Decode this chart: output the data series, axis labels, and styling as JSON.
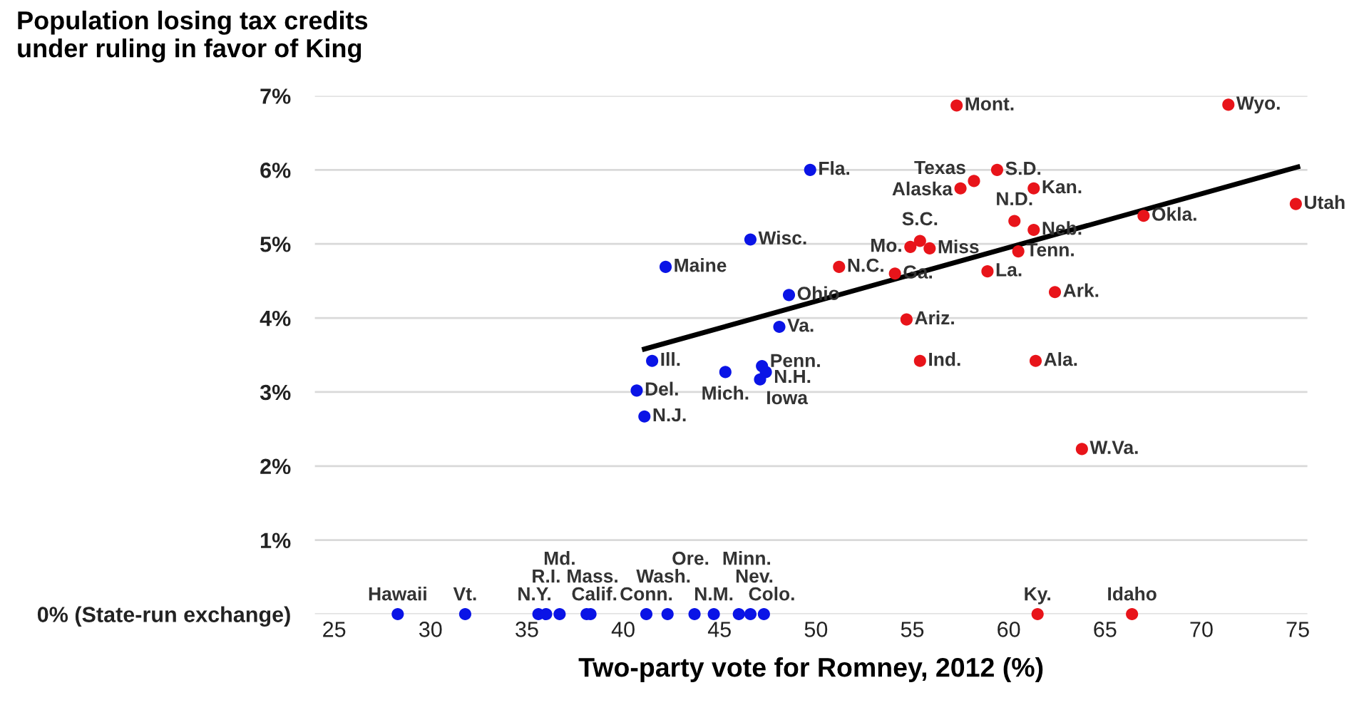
{
  "chart_data": {
    "type": "scatter",
    "title": "Population losing tax credits\nunder ruling in favor of King",
    "xlabel": "Two-party vote for Romney, 2012 (%)",
    "xlim": [
      24,
      75.5
    ],
    "xticks": [
      25,
      30,
      35,
      40,
      45,
      50,
      55,
      60,
      65,
      70,
      75
    ],
    "ylim": [
      0,
      7
    ],
    "yticks": [
      {
        "value": 0,
        "label": "0% (State-run exchange)"
      },
      {
        "value": 1,
        "label": "1%"
      },
      {
        "value": 2,
        "label": "2%"
      },
      {
        "value": 3,
        "label": "3%"
      },
      {
        "value": 4,
        "label": "4%"
      },
      {
        "value": 5,
        "label": "5%"
      },
      {
        "value": 6,
        "label": "6%"
      },
      {
        "value": 7,
        "label": "7%"
      }
    ],
    "grid": "y",
    "series": [
      {
        "marker": "circle",
        "color": "#0a14e6",
        "x": [
          49.7,
          46.6,
          42.2,
          48.6,
          48.1,
          41.5,
          45.3,
          47.2,
          47.4,
          47.1,
          40.7,
          41.1,
          28.3,
          31.8,
          35.6,
          36.0,
          36.7,
          38.1,
          38.3,
          41.2,
          42.3,
          44.7,
          43.7,
          46.0,
          46.6,
          47.3
        ],
        "values": [
          6.0,
          5.06,
          4.69,
          4.31,
          3.88,
          3.42,
          3.27,
          3.35,
          3.27,
          3.17,
          3.02,
          2.67,
          0,
          0,
          0,
          0,
          0,
          0,
          0,
          0,
          0,
          0,
          0,
          0,
          0,
          0
        ]
      },
      {
        "marker": "circle",
        "color": "#e8141a",
        "x": [
          57.3,
          71.4,
          59.4,
          58.2,
          57.5,
          61.3,
          74.9,
          67.0,
          60.3,
          61.3,
          55.4,
          54.9,
          55.9,
          60.5,
          51.2,
          54.1,
          58.9,
          62.4,
          54.7,
          55.4,
          61.4,
          63.8,
          61.5,
          66.4
        ],
        "values": [
          6.87,
          6.88,
          6.0,
          5.85,
          5.75,
          5.75,
          5.54,
          5.38,
          5.31,
          5.19,
          5.04,
          4.96,
          4.94,
          4.9,
          4.69,
          4.6,
          4.63,
          4.35,
          3.98,
          3.42,
          3.42,
          2.23,
          0,
          0
        ]
      },
      {
        "type": "line",
        "color": "#000000",
        "x": [
          41.1,
          75
        ],
        "values": [
          3.58,
          6.04
        ]
      }
    ],
    "annotations": [
      {
        "text": "Fla.",
        "x": 49.7,
        "y": 6.0
      },
      {
        "text": "Wisc.",
        "x": 46.6,
        "y": 5.06
      },
      {
        "text": "Maine",
        "x": 42.2,
        "y": 4.69
      },
      {
        "text": "Ohio",
        "x": 48.6,
        "y": 4.31
      },
      {
        "text": "Va.",
        "x": 48.1,
        "y": 3.88
      },
      {
        "text": "Ill.",
        "x": 41.5,
        "y": 3.42
      },
      {
        "text": "Mich.",
        "x": 45.3,
        "y": 3.27
      },
      {
        "text": "Penn.",
        "x": 47.2,
        "y": 3.35
      },
      {
        "text": "N.H.",
        "x": 47.4,
        "y": 3.27
      },
      {
        "text": "Iowa",
        "x": 47.1,
        "y": 3.17
      },
      {
        "text": "Del.",
        "x": 40.7,
        "y": 3.02
      },
      {
        "text": "N.J.",
        "x": 41.1,
        "y": 2.67
      },
      {
        "text": "Mont.",
        "x": 57.3,
        "y": 6.87
      },
      {
        "text": "Wyo.",
        "x": 71.4,
        "y": 6.88
      },
      {
        "text": "S.D.",
        "x": 59.4,
        "y": 6.0
      },
      {
        "text": "Texas",
        "x": 58.2,
        "y": 5.85
      },
      {
        "text": "Alaska",
        "x": 57.5,
        "y": 5.75
      },
      {
        "text": "Kan.",
        "x": 61.3,
        "y": 5.75
      },
      {
        "text": "Utah",
        "x": 74.9,
        "y": 5.54
      },
      {
        "text": "Okla.",
        "x": 67.0,
        "y": 5.38
      },
      {
        "text": "N.D.",
        "x": 60.3,
        "y": 5.31
      },
      {
        "text": "Neb.",
        "x": 61.3,
        "y": 5.19
      },
      {
        "text": "S.C.",
        "x": 55.4,
        "y": 5.04
      },
      {
        "text": "Mo.",
        "x": 54.9,
        "y": 4.96
      },
      {
        "text": "Miss",
        "x": 55.9,
        "y": 4.94
      },
      {
        "text": "Tenn.",
        "x": 60.5,
        "y": 4.9
      },
      {
        "text": "N.C.",
        "x": 51.2,
        "y": 4.69
      },
      {
        "text": "Ga.",
        "x": 54.1,
        "y": 4.6
      },
      {
        "text": "La.",
        "x": 58.9,
        "y": 4.63
      },
      {
        "text": "Ark.",
        "x": 62.4,
        "y": 4.35
      },
      {
        "text": "Ariz.",
        "x": 54.7,
        "y": 3.98
      },
      {
        "text": "Ind.",
        "x": 55.4,
        "y": 3.42
      },
      {
        "text": "Ala.",
        "x": 61.4,
        "y": 3.42
      },
      {
        "text": "W.Va.",
        "x": 63.8,
        "y": 2.23
      },
      {
        "text": "Hawaii",
        "x": 28.3,
        "y": 0
      },
      {
        "text": "Vt.",
        "x": 31.8,
        "y": 0
      },
      {
        "text": "N.Y.",
        "x": 35.6,
        "y": 0
      },
      {
        "text": "R.I.",
        "x": 36.0,
        "y": 0
      },
      {
        "text": "Md.",
        "x": 36.7,
        "y": 0
      },
      {
        "text": "Mass.",
        "x": 38.1,
        "y": 0
      },
      {
        "text": "Calif.",
        "x": 38.3,
        "y": 0
      },
      {
        "text": "Conn.",
        "x": 41.2,
        "y": 0
      },
      {
        "text": "Wash.",
        "x": 42.3,
        "y": 0
      },
      {
        "text": "N.M.",
        "x": 44.7,
        "y": 0
      },
      {
        "text": "Ore.",
        "x": 43.7,
        "y": 0
      },
      {
        "text": "Minn.",
        "x": 46.0,
        "y": 0
      },
      {
        "text": "Nev.",
        "x": 46.6,
        "y": 0
      },
      {
        "text": "Colo.",
        "x": 47.3,
        "y": 0
      },
      {
        "text": "Ky.",
        "x": 61.5,
        "y": 0
      },
      {
        "text": "Idaho",
        "x": 66.4,
        "y": 0
      }
    ]
  }
}
